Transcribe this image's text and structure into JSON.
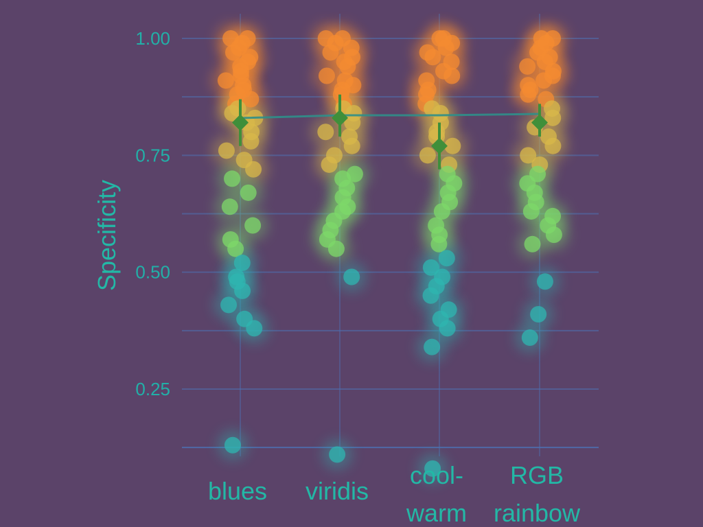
{
  "chart_data": {
    "type": "scatter",
    "title": "",
    "xlabel": "",
    "ylabel": "Specificity",
    "ylim": [
      0.0,
      1.05
    ],
    "yticks": [
      0.25,
      0.5,
      0.75,
      1.0
    ],
    "ytick_labels": [
      "0.25",
      "0.50",
      "0.75",
      "1.00"
    ],
    "categories": [
      "blues",
      "viridis",
      "cool-\nwarm",
      "RGB\nrainbow"
    ],
    "category_label_lines": [
      [
        "blues"
      ],
      [
        "viridis"
      ],
      [
        "cool-",
        "warm"
      ],
      [
        "RGB",
        "rainbow"
      ]
    ],
    "grid": true,
    "legend": "none",
    "series": [
      {
        "category": "blues",
        "points": [
          1.0,
          1.0,
          0.99,
          0.98,
          0.97,
          0.96,
          0.95,
          0.94,
          0.93,
          0.92,
          0.91,
          0.9,
          0.89,
          0.88,
          0.87,
          0.86,
          0.85,
          0.84,
          0.83,
          0.82,
          0.8,
          0.78,
          0.76,
          0.74,
          0.72,
          0.7,
          0.67,
          0.64,
          0.6,
          0.57,
          0.55,
          0.52,
          0.49,
          0.48,
          0.46,
          0.43,
          0.4,
          0.38,
          0.13
        ],
        "mean": 0.82,
        "ci": [
          0.77,
          0.87
        ]
      },
      {
        "category": "viridis",
        "points": [
          1.0,
          1.0,
          0.99,
          0.98,
          0.97,
          0.96,
          0.95,
          0.94,
          0.92,
          0.91,
          0.9,
          0.89,
          0.88,
          0.86,
          0.85,
          0.84,
          0.82,
          0.8,
          0.79,
          0.77,
          0.75,
          0.73,
          0.71,
          0.7,
          0.68,
          0.66,
          0.64,
          0.63,
          0.61,
          0.59,
          0.57,
          0.55,
          0.49,
          0.11
        ],
        "mean": 0.83,
        "ci": [
          0.79,
          0.88
        ]
      },
      {
        "category": "cool-warm",
        "points": [
          1.0,
          1.0,
          0.99,
          0.98,
          0.97,
          0.96,
          0.95,
          0.93,
          0.92,
          0.91,
          0.89,
          0.88,
          0.86,
          0.85,
          0.84,
          0.82,
          0.8,
          0.79,
          0.77,
          0.75,
          0.73,
          0.71,
          0.69,
          0.67,
          0.65,
          0.63,
          0.6,
          0.58,
          0.56,
          0.53,
          0.51,
          0.49,
          0.47,
          0.45,
          0.42,
          0.4,
          0.38,
          0.34,
          0.08
        ],
        "mean": 0.77,
        "ci": [
          0.72,
          0.82
        ]
      },
      {
        "category": "RGB rainbow",
        "points": [
          1.0,
          1.0,
          0.99,
          0.98,
          0.97,
          0.96,
          0.95,
          0.94,
          0.93,
          0.92,
          0.91,
          0.9,
          0.89,
          0.88,
          0.87,
          0.85,
          0.83,
          0.81,
          0.79,
          0.77,
          0.75,
          0.73,
          0.71,
          0.69,
          0.67,
          0.65,
          0.63,
          0.62,
          0.6,
          0.58,
          0.56,
          0.48,
          0.41,
          0.36
        ],
        "mean": 0.82,
        "ci": [
          0.79,
          0.86
        ]
      }
    ],
    "colors": {
      "background": "#5b4369",
      "point_low": "#2fb6b0",
      "point_mid": "#7ed86a",
      "point_high": "#f48b32",
      "mean_marker": "#3f8f3a",
      "text": "#23b8a6"
    }
  }
}
